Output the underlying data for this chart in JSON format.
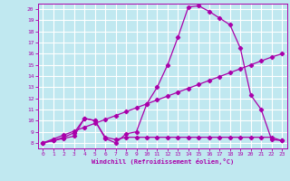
{
  "xlabel": "Windchill (Refroidissement éolien,°C)",
  "bg_color": "#c0e8f0",
  "grid_color": "#ffffff",
  "line_color": "#aa00aa",
  "xlim": [
    -0.5,
    23.5
  ],
  "ylim": [
    7.5,
    20.5
  ],
  "yticks": [
    8,
    9,
    10,
    11,
    12,
    13,
    14,
    15,
    16,
    17,
    18,
    19,
    20
  ],
  "xticks": [
    0,
    1,
    2,
    3,
    4,
    5,
    6,
    7,
    8,
    9,
    10,
    11,
    12,
    13,
    14,
    15,
    16,
    17,
    18,
    19,
    20,
    21,
    22,
    23
  ],
  "series1_x": [
    0,
    1,
    2,
    3,
    4,
    5,
    6,
    7,
    8,
    9,
    10,
    11,
    12,
    13,
    14,
    15,
    16,
    17,
    18,
    19,
    20,
    21,
    22,
    23
  ],
  "series1_y": [
    8.0,
    8.2,
    8.4,
    8.6,
    10.2,
    10.0,
    8.5,
    8.3,
    8.5,
    8.5,
    8.5,
    8.5,
    8.5,
    8.5,
    8.5,
    8.5,
    8.5,
    8.5,
    8.5,
    8.5,
    8.5,
    8.5,
    8.5,
    8.2
  ],
  "series2_x": [
    0,
    1,
    2,
    3,
    4,
    5,
    6,
    7,
    8,
    9,
    10,
    11,
    12,
    13,
    14,
    15,
    16,
    17,
    18,
    19,
    20,
    21,
    22,
    23
  ],
  "series2_y": [
    8.0,
    8.35,
    8.7,
    9.05,
    9.4,
    9.75,
    10.1,
    10.45,
    10.8,
    11.15,
    11.5,
    11.85,
    12.2,
    12.55,
    12.9,
    13.25,
    13.6,
    13.95,
    14.3,
    14.65,
    15.0,
    15.35,
    15.7,
    16.0
  ],
  "series3_x": [
    0,
    1,
    2,
    3,
    4,
    5,
    6,
    7,
    8,
    9,
    10,
    11,
    12,
    13,
    14,
    15,
    16,
    17,
    18,
    19,
    20,
    21,
    22,
    23
  ],
  "series3_y": [
    8.0,
    8.2,
    8.5,
    8.9,
    10.2,
    10.0,
    8.4,
    8.0,
    8.8,
    9.0,
    11.5,
    13.0,
    15.0,
    17.5,
    20.2,
    20.3,
    19.8,
    19.2,
    18.6,
    16.5,
    12.3,
    11.0,
    8.3,
    8.2
  ]
}
